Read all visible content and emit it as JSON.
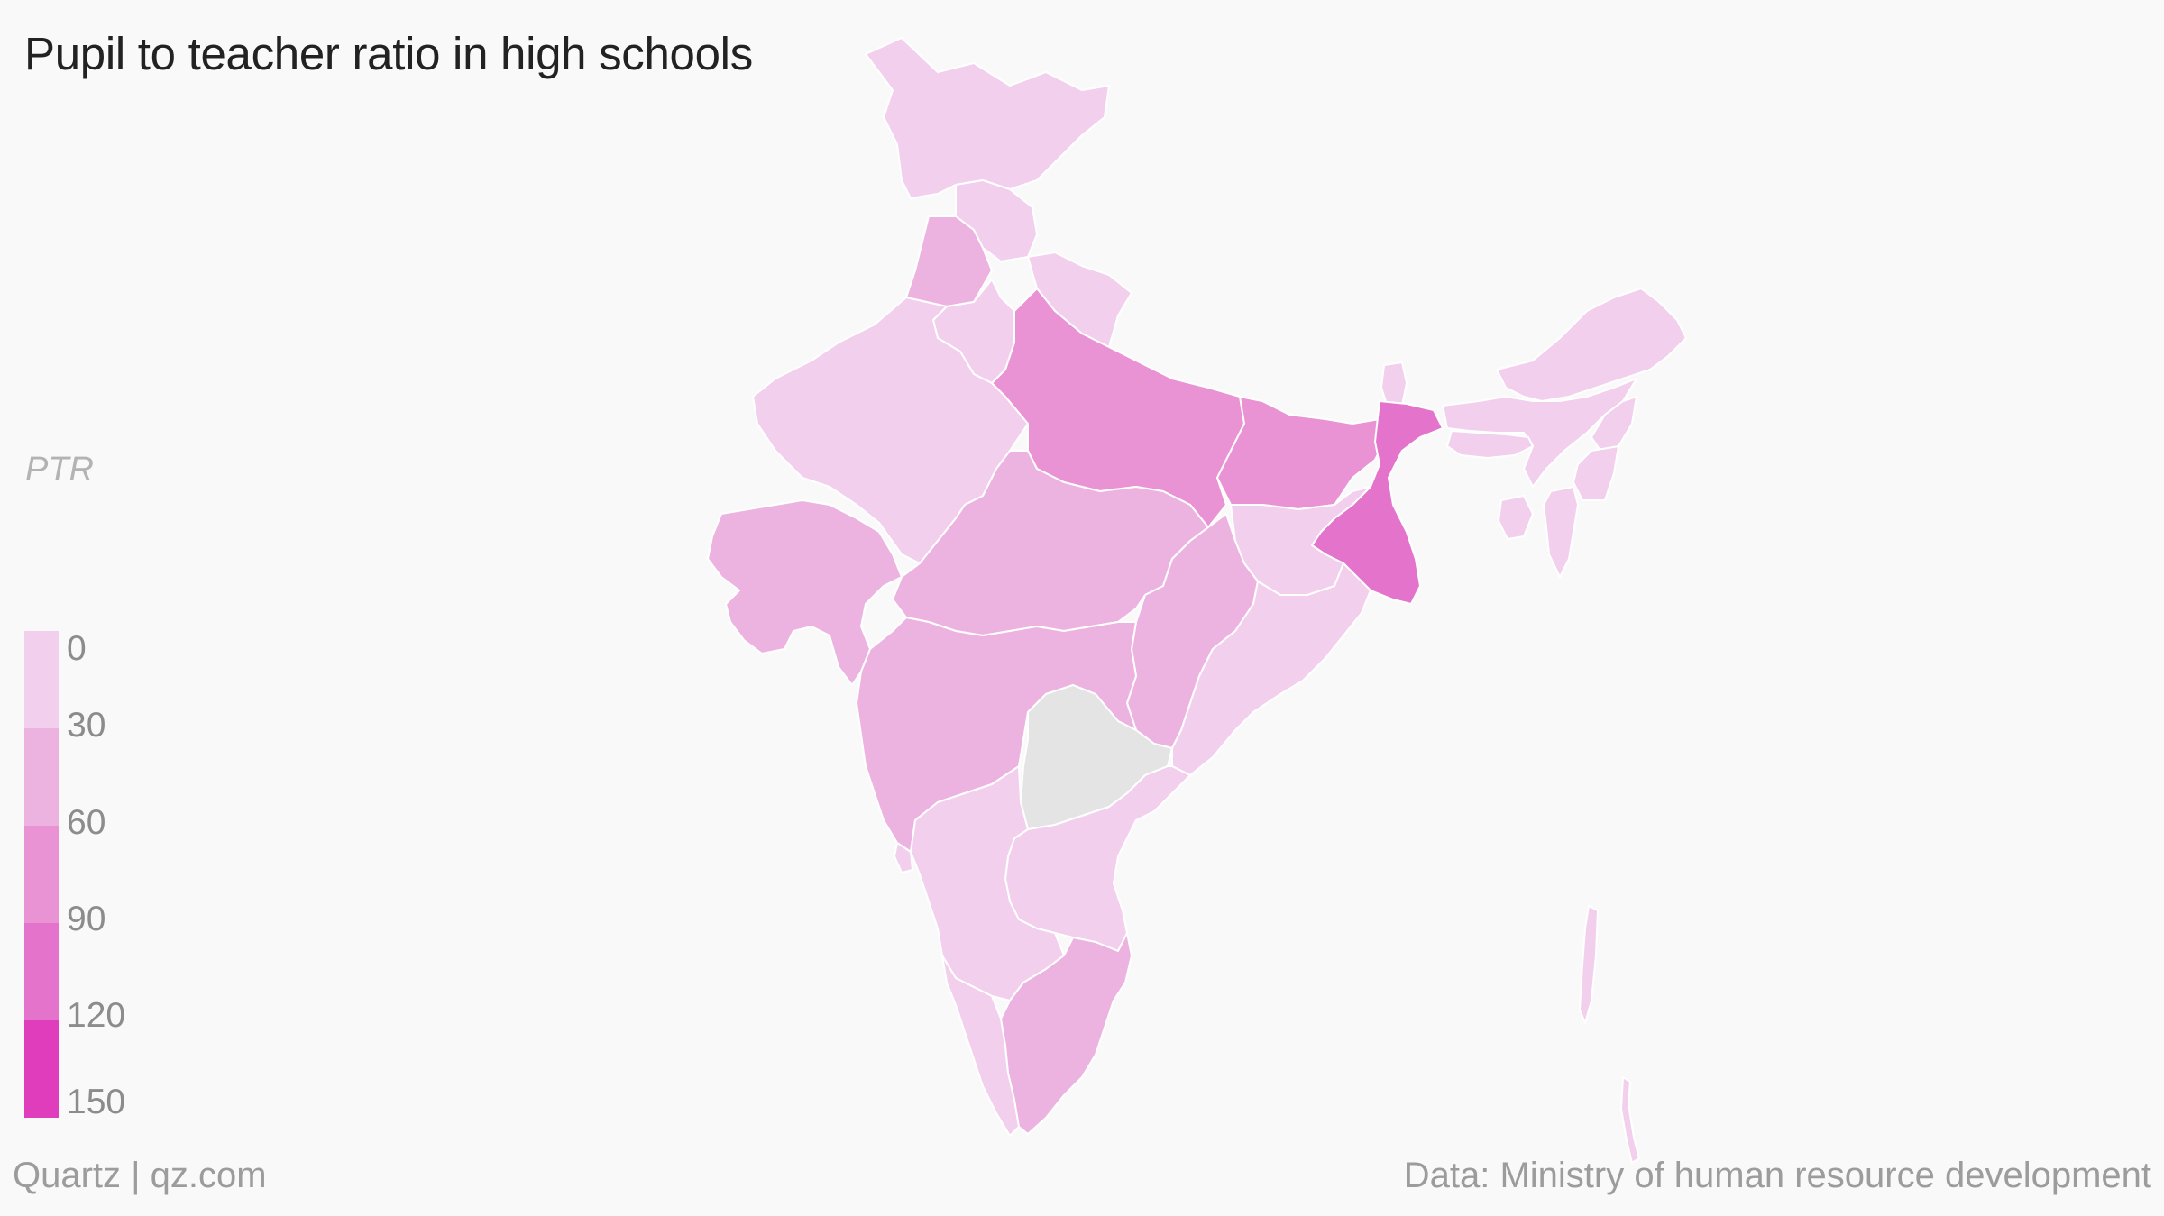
{
  "title": "Pupil to teacher ratio in high schools",
  "legend": {
    "title": "PTR",
    "labels": [
      "0",
      "30",
      "60",
      "90",
      "120",
      "150"
    ],
    "colors": [
      "#f2cfec",
      "#edb3e0",
      "#e993d5",
      "#e474cb",
      "#e03dbd"
    ]
  },
  "footer": {
    "source_brand": "Quartz | qz.com",
    "source_data": "Data: Ministry of human resource development"
  },
  "colors": {
    "background": "#f9f9f9",
    "no_data": "#e4e4e4",
    "border": "#ffffff"
  }
}
